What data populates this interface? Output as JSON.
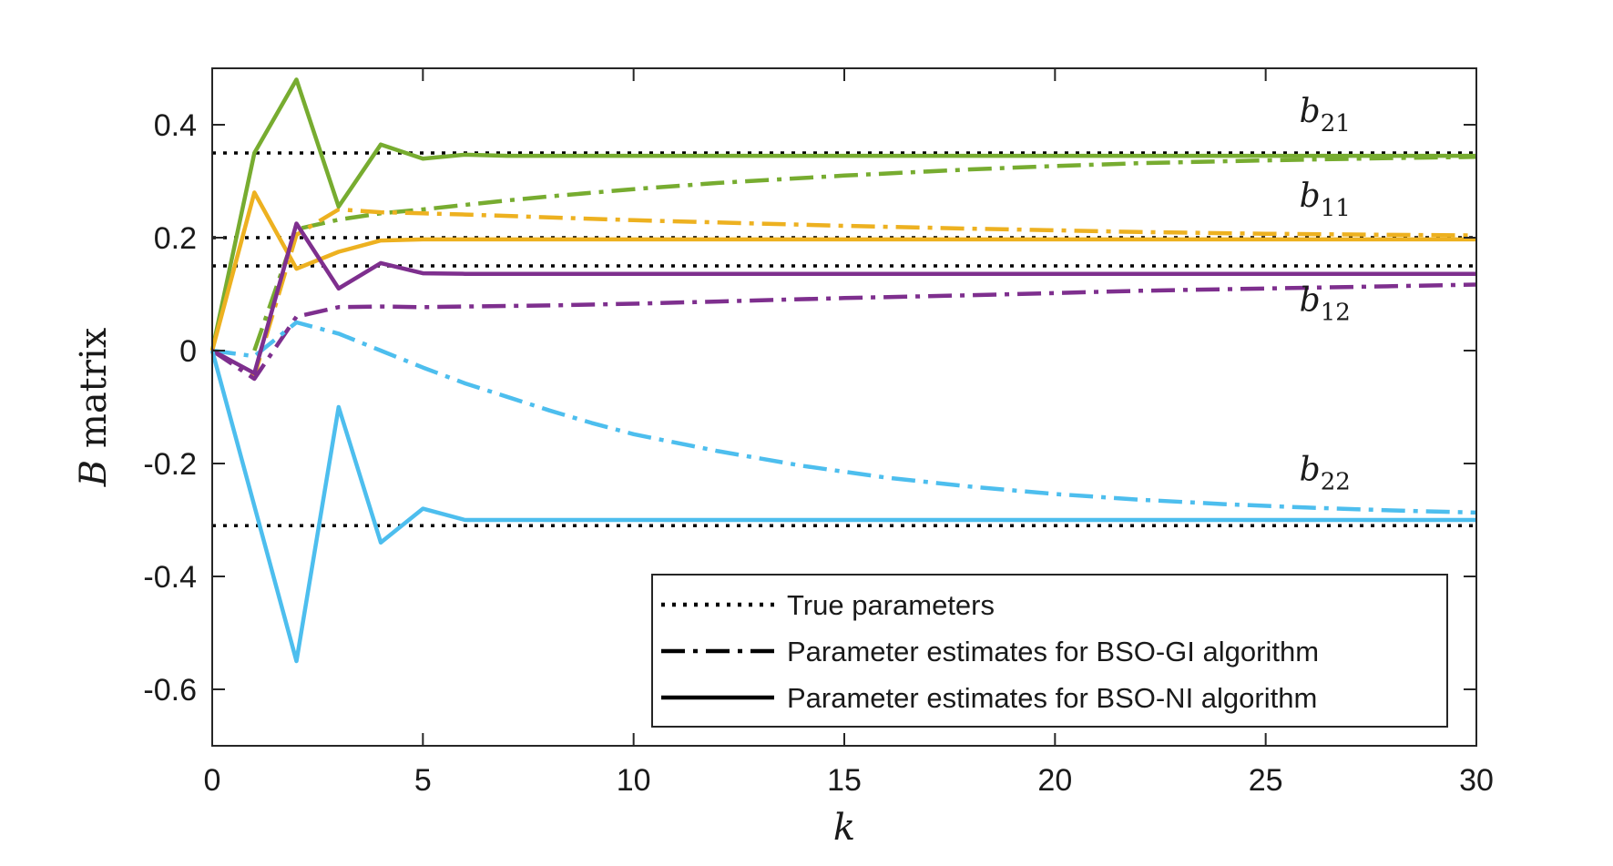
{
  "chart_data": {
    "type": "line",
    "xlabel": "k",
    "ylabel_italic": "B",
    "ylabel_rest": " matrix",
    "xlim": [
      0,
      30
    ],
    "ylim": [
      -0.7,
      0.5
    ],
    "xticks": [
      0,
      5,
      10,
      15,
      20,
      25,
      30
    ],
    "yticks": [
      -0.6,
      -0.4,
      -0.2,
      0,
      0.2,
      0.4
    ],
    "ytick_labels": [
      "-0.6",
      "-0.4",
      "-0.2",
      "0",
      "0.2",
      "0.4"
    ],
    "grid": false,
    "legend_position": "bottom-right",
    "legend": [
      {
        "label": "True parameters",
        "style": "dotted"
      },
      {
        "label": "Parameter estimates for BSO-GI algorithm",
        "style": "dashdot"
      },
      {
        "label": "Parameter estimates for BSO-NI algorithm",
        "style": "solid"
      }
    ],
    "colors": {
      "green": "#77AC30",
      "orange": "#EDB120",
      "purple": "#7E2F8E",
      "cyan": "#4DBEEE",
      "black": "#000000"
    },
    "true_values": [
      0.35,
      0.2,
      0.15,
      -0.31
    ],
    "annotations": [
      {
        "base": "b",
        "sub": "21",
        "x": 25.8,
        "y": 0.405
      },
      {
        "base": "b",
        "sub": "11",
        "x": 25.8,
        "y": 0.255
      },
      {
        "base": "b",
        "sub": "12",
        "x": 25.8,
        "y": 0.07
      },
      {
        "base": "b",
        "sub": "22",
        "x": 25.8,
        "y": -0.23
      }
    ],
    "series": [
      {
        "style": "solid",
        "color": "green",
        "x": [
          0,
          1,
          2,
          3,
          4,
          5,
          6,
          7,
          8,
          10,
          15,
          20,
          25,
          30
        ],
        "y": [
          0,
          0.35,
          0.48,
          0.255,
          0.365,
          0.34,
          0.347,
          0.345,
          0.345,
          0.345,
          0.345,
          0.345,
          0.345,
          0.345
        ]
      },
      {
        "style": "dashdot",
        "color": "green",
        "x": [
          1,
          2,
          3,
          4,
          5,
          6,
          7,
          8,
          10,
          12,
          15,
          18,
          20,
          22,
          25,
          28,
          30
        ],
        "y": [
          0,
          0.215,
          0.232,
          0.243,
          0.25,
          0.258,
          0.266,
          0.273,
          0.286,
          0.297,
          0.31,
          0.321,
          0.327,
          0.332,
          0.337,
          0.341,
          0.343
        ]
      },
      {
        "style": "solid",
        "color": "orange",
        "x": [
          0,
          1,
          2,
          3,
          4,
          5,
          6,
          8,
          10,
          15,
          20,
          25,
          30
        ],
        "y": [
          0,
          0.28,
          0.145,
          0.175,
          0.195,
          0.197,
          0.197,
          0.197,
          0.197,
          0.197,
          0.197,
          0.197,
          0.197
        ]
      },
      {
        "style": "dashdot",
        "color": "orange",
        "x": [
          0,
          1,
          2,
          3,
          4,
          5,
          6,
          8,
          10,
          12,
          15,
          18,
          20,
          22,
          25,
          28,
          30
        ],
        "y": [
          0,
          -0.045,
          0.205,
          0.25,
          0.245,
          0.243,
          0.241,
          0.236,
          0.231,
          0.227,
          0.221,
          0.216,
          0.213,
          0.21,
          0.207,
          0.205,
          0.204
        ]
      },
      {
        "style": "solid",
        "color": "purple",
        "x": [
          0,
          1,
          2,
          3,
          4,
          5,
          6,
          8,
          10,
          15,
          20,
          25,
          30
        ],
        "y": [
          0,
          -0.04,
          0.225,
          0.11,
          0.155,
          0.137,
          0.136,
          0.136,
          0.136,
          0.136,
          0.136,
          0.136,
          0.136
        ]
      },
      {
        "style": "dashdot",
        "color": "purple",
        "x": [
          0,
          1,
          2,
          3,
          4,
          5,
          6,
          8,
          10,
          12,
          15,
          18,
          20,
          22,
          25,
          28,
          30
        ],
        "y": [
          0,
          -0.05,
          0.06,
          0.077,
          0.078,
          0.077,
          0.078,
          0.08,
          0.083,
          0.087,
          0.093,
          0.098,
          0.102,
          0.106,
          0.11,
          0.114,
          0.117
        ]
      },
      {
        "style": "solid",
        "color": "cyan",
        "x": [
          0,
          2,
          3,
          4,
          5,
          6,
          8,
          10,
          15,
          20,
          25,
          30
        ],
        "y": [
          0,
          -0.55,
          -0.1,
          -0.34,
          -0.28,
          -0.3,
          -0.3,
          -0.3,
          -0.3,
          -0.3,
          -0.3,
          -0.3
        ]
      },
      {
        "style": "dashdot",
        "color": "cyan",
        "x": [
          0,
          1,
          2,
          3,
          4,
          5,
          6,
          7,
          8,
          9,
          10,
          12,
          14,
          16,
          18,
          20,
          22,
          24,
          26,
          28,
          30
        ],
        "y": [
          0,
          -0.01,
          0.05,
          0.03,
          0.0,
          -0.03,
          -0.058,
          -0.082,
          -0.106,
          -0.128,
          -0.148,
          -0.178,
          -0.204,
          -0.225,
          -0.241,
          -0.254,
          -0.264,
          -0.272,
          -0.278,
          -0.283,
          -0.287
        ]
      }
    ]
  }
}
